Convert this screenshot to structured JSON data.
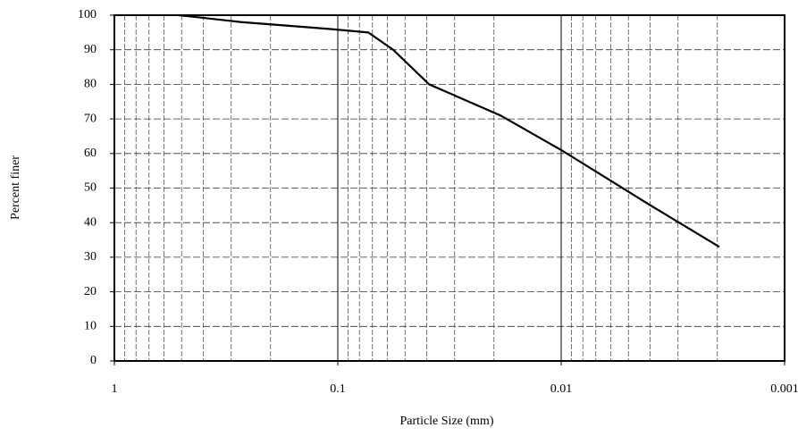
{
  "chart_data": {
    "type": "line",
    "xlabel": "Particle Size (mm)",
    "ylabel": "Percent finer",
    "x": [
      0.515,
      0.436,
      0.27,
      0.17,
      0.108,
      0.073,
      0.0565,
      0.039,
      0.0187,
      0.01,
      0.0062,
      0.0041,
      0.00196
    ],
    "values": [
      100,
      99.5,
      98,
      97,
      96,
      95,
      90,
      80,
      71,
      61,
      52.7,
      45.5,
      33
    ],
    "color": "#000000",
    "xscale": "log",
    "xlim": [
      1,
      0.001
    ],
    "xticks": [
      1,
      0.1,
      0.01,
      0.001
    ],
    "ylim": [
      0,
      100
    ],
    "yticks": [
      0,
      10,
      20,
      30,
      40,
      50,
      60,
      70,
      80,
      90,
      100
    ],
    "grid": true,
    "minor_grid": true
  }
}
